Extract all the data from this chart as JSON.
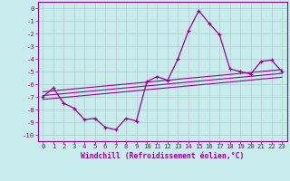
{
  "background_color": "#c8ecec",
  "grid_color": "#b0cccc",
  "line_color": "#990099",
  "marker": "+",
  "xlabel": "Windchill (Refroidissement éolien,°C)",
  "xlim": [
    -0.5,
    23.5
  ],
  "ylim": [
    -10.5,
    0.5
  ],
  "xticks": [
    0,
    1,
    2,
    3,
    4,
    5,
    6,
    7,
    8,
    9,
    10,
    11,
    12,
    13,
    14,
    15,
    16,
    17,
    18,
    19,
    20,
    21,
    22,
    23
  ],
  "yticks": [
    0,
    -1,
    -2,
    -3,
    -4,
    -5,
    -6,
    -7,
    -8,
    -9,
    -10
  ],
  "main_x": [
    0,
    1,
    2,
    3,
    4,
    5,
    6,
    7,
    8,
    9,
    10,
    11,
    12,
    13,
    14,
    15,
    16,
    17,
    18,
    19,
    20,
    21,
    22,
    23
  ],
  "main_y": [
    -7.0,
    -6.3,
    -7.5,
    -7.9,
    -8.8,
    -8.7,
    -9.4,
    -9.6,
    -8.7,
    -8.9,
    -5.8,
    -5.4,
    -5.7,
    -4.0,
    -1.8,
    -0.2,
    -1.2,
    -2.1,
    -4.8,
    -5.0,
    -5.2,
    -4.2,
    -4.1,
    -5.0
  ],
  "line1_x": [
    0,
    23
  ],
  "line1_y": [
    -6.6,
    -4.85
  ],
  "line2_x": [
    0,
    23
  ],
  "line2_y": [
    -6.9,
    -5.15
  ],
  "line3_x": [
    0,
    23
  ],
  "line3_y": [
    -7.2,
    -5.45
  ]
}
